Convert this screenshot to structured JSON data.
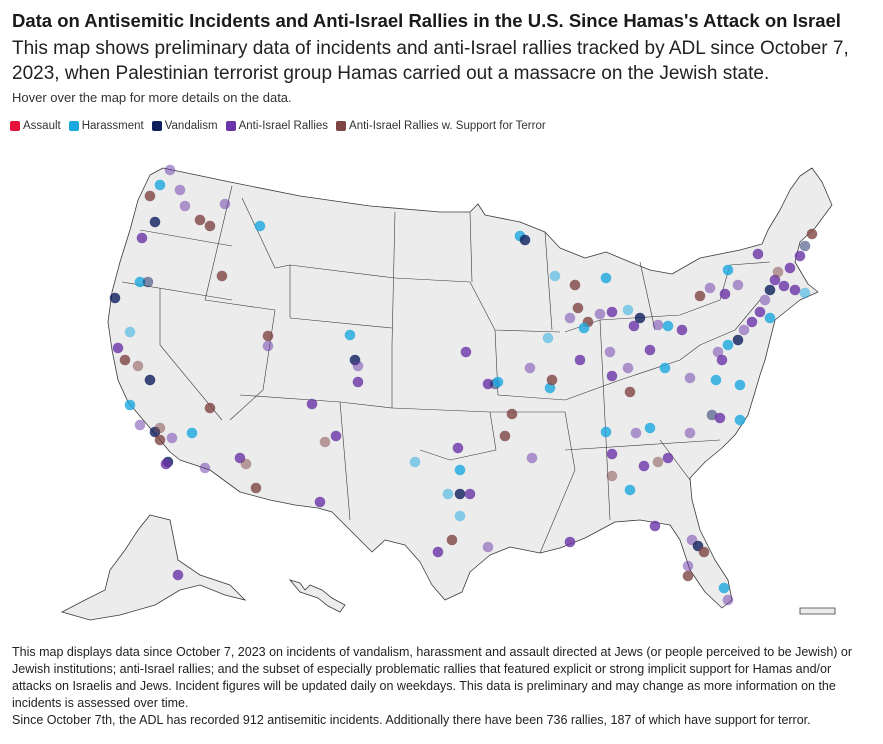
{
  "title": "Data on Antisemitic Incidents and Anti-Israel Rallies in the U.S. Since Hamas's Attack on Israel",
  "subtitle": "This map shows preliminary data of incidents and anti-Israel rallies tracked by ADL since October 7, 2023, when Palestinian terrorist group Hamas carried out a massacre on the Jewish state.",
  "hint": "Hover over the map for more details on the data.",
  "legend": [
    {
      "label": "Assault",
      "color": "#e4123b"
    },
    {
      "label": "Harassment",
      "color": "#1ba8e0"
    },
    {
      "label": "Vandalism",
      "color": "#0d1f5c"
    },
    {
      "label": "Anti-Israel Rallies",
      "color": "#6a35a8"
    },
    {
      "label": "Anti-Israel Rallies w. Support for Terror",
      "color": "#7e4545"
    }
  ],
  "footer": {
    "p1": "This map displays data since October 7, 2023 on incidents of vandalism, harassment and assault directed at Jews (or people perceived to be Jewish) or Jewish institutions; anti-Israel rallies; and the subset of especially problematic rallies that featured explicit or strong implicit support for Hamas and/or attacks on Israelis and Jews. Incident figures will be updated daily on weekdays. This data is preliminary and may change as more information on the incidents is assessed over time.",
    "p2": "Since October 7th, the ADL has recorded 912 antisemitic incidents. Additionally there have been 736 rallies, 187 of which have support for terror."
  },
  "map": {
    "land_color": "#ececec",
    "border_color": "#3a3a3a"
  }
}
